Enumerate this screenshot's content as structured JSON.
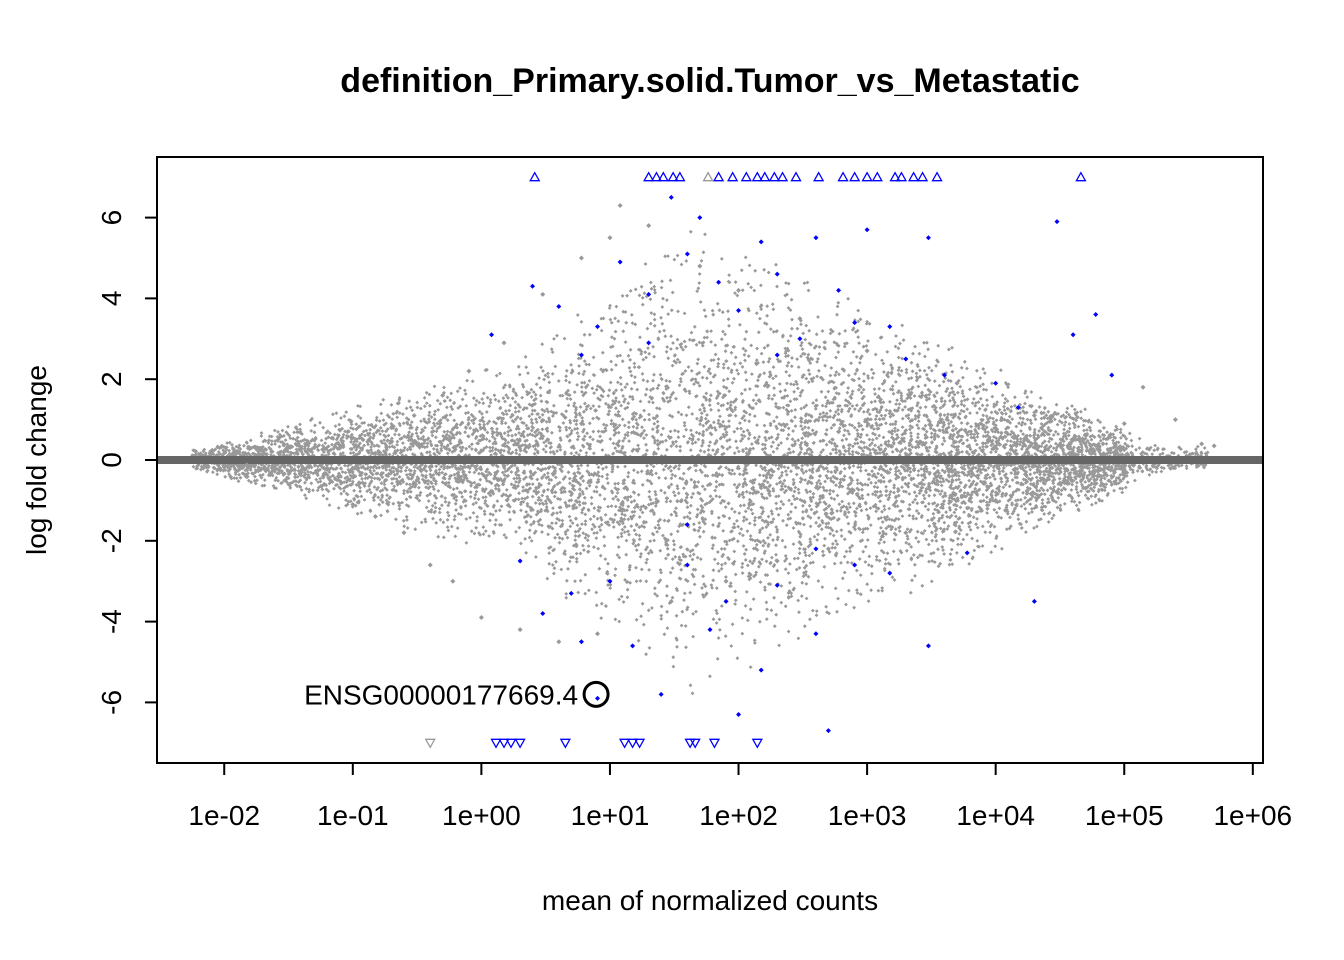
{
  "chart_data": {
    "type": "scatter",
    "title": "definition_Primary.solid.Tumor_vs_Metastatic",
    "xlabel": "mean of normalized counts",
    "ylabel": "log fold change",
    "x_scale": "log10",
    "xlim": [
      0.003,
      1200000
    ],
    "ylim": [
      -7.5,
      7.5
    ],
    "x_ticks": [
      0.01,
      0.1,
      1,
      10,
      100,
      1000,
      10000,
      100000,
      1000000
    ],
    "x_tick_labels": [
      "1e-02",
      "1e-01",
      "1e+00",
      "1e+01",
      "1e+02",
      "1e+03",
      "1e+04",
      "1e+05",
      "1e+06"
    ],
    "y_ticks": [
      -6,
      -4,
      -2,
      0,
      2,
      4,
      6
    ],
    "y_tick_labels": [
      "-6",
      "-4",
      "-2",
      "0",
      "2",
      "4",
      "6"
    ],
    "zero_line": 0,
    "out_of_range_marker_y": [
      7.0,
      -7.0
    ],
    "colors": {
      "nonsignificant": "#999999",
      "significant": "#0000ff",
      "zero_line": "#666666",
      "highlight": "#000000"
    },
    "series": [
      {
        "name": "",
        "color": "#999999",
        "points": [
          [
            0.006,
            0.21
          ],
          [
            0.008,
            0.2
          ],
          [
            0.01,
            -0.18
          ],
          [
            0.012,
            0.19
          ],
          [
            0.015,
            -0.12
          ],
          [
            0.02,
            0.23
          ],
          [
            0.025,
            -0.22
          ],
          [
            0.03,
            0.25
          ],
          [
            0.04,
            -0.3
          ],
          [
            0.05,
            0.3
          ],
          [
            0.06,
            -0.6
          ],
          [
            0.08,
            0.35
          ],
          [
            0.1,
            -1.1
          ],
          [
            0.12,
            0.5
          ],
          [
            0.15,
            -1.4
          ],
          [
            0.2,
            0.8
          ],
          [
            0.25,
            -1.8
          ],
          [
            0.3,
            1.1
          ],
          [
            0.4,
            -2.6
          ],
          [
            0.5,
            1.6
          ],
          [
            0.6,
            -3.0
          ],
          [
            0.8,
            2.2
          ],
          [
            1.0,
            -3.9
          ],
          [
            1.5,
            2.9
          ],
          [
            2.0,
            -4.2
          ],
          [
            3.0,
            4.1
          ],
          [
            4.0,
            -4.5
          ],
          [
            6.0,
            5.0
          ],
          [
            8.0,
            -4.3
          ],
          [
            10.0,
            5.5
          ],
          [
            12.0,
            6.3
          ],
          [
            20.0,
            5.8
          ],
          [
            30.0,
            -3.5
          ],
          [
            50.0,
            4.8
          ],
          [
            80.0,
            -3.0
          ],
          [
            100.0,
            4.2
          ],
          [
            200.0,
            -2.5
          ],
          [
            300.0,
            3.5
          ],
          [
            500.0,
            -2.2
          ],
          [
            1000.0,
            2.7
          ],
          [
            2000.0,
            -1.8
          ],
          [
            5000.0,
            1.9
          ],
          [
            10000.0,
            -1.0
          ],
          [
            20000.0,
            1.1
          ],
          [
            50000.0,
            -0.7
          ],
          [
            100000.0,
            0.9
          ],
          [
            140000.0,
            1.8
          ],
          [
            250000.0,
            1.0
          ],
          [
            400000.0,
            0.4
          ],
          [
            500000.0,
            0.35
          ],
          [
            600.0,
            0.7
          ],
          [
            60.0,
            -0.6
          ],
          [
            6.0,
            0.9
          ],
          [
            0.7,
            -0.5
          ]
        ]
      },
      {
        "name": "",
        "color": "#0000ff",
        "points": [
          [
            1.2,
            3.1
          ],
          [
            2.5,
            4.3
          ],
          [
            4.0,
            3.8
          ],
          [
            6.0,
            2.6
          ],
          [
            8.0,
            3.3
          ],
          [
            12.0,
            4.9
          ],
          [
            20.0,
            4.1
          ],
          [
            30.0,
            6.5
          ],
          [
            40.0,
            5.1
          ],
          [
            50.0,
            6.0
          ],
          [
            70.0,
            4.4
          ],
          [
            100.0,
            3.7
          ],
          [
            150.0,
            5.4
          ],
          [
            200.0,
            4.6
          ],
          [
            300.0,
            3.0
          ],
          [
            400.0,
            5.5
          ],
          [
            600.0,
            4.2
          ],
          [
            800.0,
            3.4
          ],
          [
            1000.0,
            5.7
          ],
          [
            1500.0,
            3.3
          ],
          [
            2000.0,
            2.5
          ],
          [
            3000.0,
            5.5
          ],
          [
            4000.0,
            2.1
          ],
          [
            10000.0,
            1.9
          ],
          [
            15000.0,
            1.3
          ],
          [
            30000.0,
            5.9
          ],
          [
            40000.0,
            3.1
          ],
          [
            60000.0,
            3.6
          ],
          [
            80000.0,
            2.1
          ],
          [
            200.0,
            2.6
          ],
          [
            20.0,
            2.9
          ],
          [
            2.0,
            -2.5
          ],
          [
            3.0,
            -3.8
          ],
          [
            5.0,
            -3.3
          ],
          [
            6.0,
            -4.5
          ],
          [
            8.0,
            -5.9
          ],
          [
            10.0,
            -3.0
          ],
          [
            15.0,
            -4.6
          ],
          [
            25.0,
            -5.8
          ],
          [
            40.0,
            -2.6
          ],
          [
            60.0,
            -4.2
          ],
          [
            80.0,
            -3.5
          ],
          [
            100.0,
            -6.3
          ],
          [
            150.0,
            -5.2
          ],
          [
            200.0,
            -3.1
          ],
          [
            400.0,
            -4.3
          ],
          [
            500.0,
            -6.7
          ],
          [
            800.0,
            -2.6
          ],
          [
            1500.0,
            -2.8
          ],
          [
            3000.0,
            -4.6
          ],
          [
            6000.0,
            -2.3
          ],
          [
            20000.0,
            -3.5
          ],
          [
            400.0,
            -2.2
          ],
          [
            40.0,
            -1.6
          ]
        ]
      }
    ],
    "out_of_range_points": [
      {
        "x": 0.4,
        "y": -7.0,
        "direction": "down",
        "color": "#999999"
      },
      {
        "x": 1.3,
        "y": -7.0,
        "direction": "down",
        "color": "#0000ff"
      },
      {
        "x": 1.5,
        "y": -7.0,
        "direction": "down",
        "color": "#0000ff"
      },
      {
        "x": 1.7,
        "y": -7.0,
        "direction": "down",
        "color": "#0000ff"
      },
      {
        "x": 2.0,
        "y": -7.0,
        "direction": "down",
        "color": "#0000ff"
      },
      {
        "x": 4.5,
        "y": -7.0,
        "direction": "down",
        "color": "#0000ff"
      },
      {
        "x": 13.0,
        "y": -7.0,
        "direction": "down",
        "color": "#0000ff"
      },
      {
        "x": 15.0,
        "y": -7.0,
        "direction": "down",
        "color": "#0000ff"
      },
      {
        "x": 17.0,
        "y": -7.0,
        "direction": "down",
        "color": "#0000ff"
      },
      {
        "x": 42.0,
        "y": -7.0,
        "direction": "down",
        "color": "#0000ff"
      },
      {
        "x": 46.0,
        "y": -7.0,
        "direction": "down",
        "color": "#0000ff"
      },
      {
        "x": 65.0,
        "y": -7.0,
        "direction": "down",
        "color": "#0000ff"
      },
      {
        "x": 140.0,
        "y": -7.0,
        "direction": "down",
        "color": "#0000ff"
      },
      {
        "x": 2.6,
        "y": 7.0,
        "direction": "up",
        "color": "#0000ff"
      },
      {
        "x": 20.0,
        "y": 7.0,
        "direction": "up",
        "color": "#0000ff"
      },
      {
        "x": 23.0,
        "y": 7.0,
        "direction": "up",
        "color": "#0000ff"
      },
      {
        "x": 26.0,
        "y": 7.0,
        "direction": "up",
        "color": "#0000ff"
      },
      {
        "x": 31.0,
        "y": 7.0,
        "direction": "up",
        "color": "#0000ff"
      },
      {
        "x": 35.0,
        "y": 7.0,
        "direction": "up",
        "color": "#0000ff"
      },
      {
        "x": 58.0,
        "y": 7.0,
        "direction": "up",
        "color": "#999999"
      },
      {
        "x": 70.0,
        "y": 7.0,
        "direction": "up",
        "color": "#0000ff"
      },
      {
        "x": 90.0,
        "y": 7.0,
        "direction": "up",
        "color": "#0000ff"
      },
      {
        "x": 115.0,
        "y": 7.0,
        "direction": "up",
        "color": "#0000ff"
      },
      {
        "x": 140.0,
        "y": 7.0,
        "direction": "up",
        "color": "#0000ff"
      },
      {
        "x": 160.0,
        "y": 7.0,
        "direction": "up",
        "color": "#0000ff"
      },
      {
        "x": 190.0,
        "y": 7.0,
        "direction": "up",
        "color": "#0000ff"
      },
      {
        "x": 220.0,
        "y": 7.0,
        "direction": "up",
        "color": "#0000ff"
      },
      {
        "x": 280.0,
        "y": 7.0,
        "direction": "up",
        "color": "#0000ff"
      },
      {
        "x": 420.0,
        "y": 7.0,
        "direction": "up",
        "color": "#0000ff"
      },
      {
        "x": 650.0,
        "y": 7.0,
        "direction": "up",
        "color": "#0000ff"
      },
      {
        "x": 800.0,
        "y": 7.0,
        "direction": "up",
        "color": "#0000ff"
      },
      {
        "x": 1000.0,
        "y": 7.0,
        "direction": "up",
        "color": "#0000ff"
      },
      {
        "x": 1200.0,
        "y": 7.0,
        "direction": "up",
        "color": "#0000ff"
      },
      {
        "x": 1650.0,
        "y": 7.0,
        "direction": "up",
        "color": "#0000ff"
      },
      {
        "x": 1850.0,
        "y": 7.0,
        "direction": "up",
        "color": "#0000ff"
      },
      {
        "x": 2300.0,
        "y": 7.0,
        "direction": "up",
        "color": "#0000ff"
      },
      {
        "x": 2700.0,
        "y": 7.0,
        "direction": "up",
        "color": "#0000ff"
      },
      {
        "x": 3500.0,
        "y": 7.0,
        "direction": "up",
        "color": "#0000ff"
      },
      {
        "x": 46000.0,
        "y": 7.0,
        "direction": "up",
        "color": "#0000ff"
      }
    ],
    "highlight": {
      "label": "ENSG00000177669.4",
      "x": 7.8,
      "y": -5.8
    }
  }
}
